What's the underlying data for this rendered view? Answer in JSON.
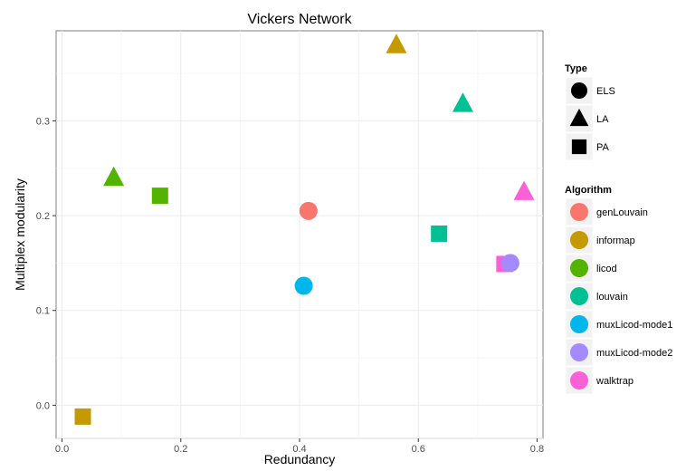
{
  "chart_data": {
    "type": "scatter",
    "title": "Vickers Network",
    "xlabel": "Redundancy",
    "ylabel": "Multiplex modularity",
    "xlim": [
      -0.01,
      0.81
    ],
    "ylim": [
      -0.035,
      0.395
    ],
    "xticks": [
      0.0,
      0.2,
      0.4,
      0.6,
      0.8
    ],
    "xtick_labels": [
      "0.0",
      "0.2",
      "0.4",
      "0.6",
      "0.8"
    ],
    "yticks": [
      0.0,
      0.1,
      0.2,
      0.3
    ],
    "ytick_labels": [
      "0.0",
      "0.1",
      "0.2",
      "0.3"
    ],
    "grid": true,
    "points": [
      {
        "algorithm": "genLouvain",
        "type": "ELS",
        "x": 0.415,
        "y": 0.205
      },
      {
        "algorithm": "informap",
        "type": "LA",
        "x": 0.563,
        "y": 0.38
      },
      {
        "algorithm": "informap",
        "type": "PA",
        "x": 0.035,
        "y": -0.012
      },
      {
        "algorithm": "licod",
        "type": "LA",
        "x": 0.087,
        "y": 0.24
      },
      {
        "algorithm": "licod",
        "type": "PA",
        "x": 0.165,
        "y": 0.221
      },
      {
        "algorithm": "louvain",
        "type": "LA",
        "x": 0.675,
        "y": 0.318
      },
      {
        "algorithm": "louvain",
        "type": "PA",
        "x": 0.635,
        "y": 0.181
      },
      {
        "algorithm": "muxLicod-mode1",
        "type": "ELS",
        "x": 0.407,
        "y": 0.126
      },
      {
        "algorithm": "walktrap",
        "type": "PA",
        "x": 0.745,
        "y": 0.149
      },
      {
        "algorithm": "muxLicod-mode2",
        "type": "ELS",
        "x": 0.755,
        "y": 0.15
      },
      {
        "algorithm": "walktrap",
        "type": "LA",
        "x": 0.778,
        "y": 0.225
      }
    ],
    "legends": {
      "type": {
        "title": "Type",
        "entries": [
          {
            "label": "ELS",
            "shape": "circle"
          },
          {
            "label": "LA",
            "shape": "triangle"
          },
          {
            "label": "PA",
            "shape": "square"
          }
        ]
      },
      "algorithm": {
        "title": "Algorithm",
        "entries": [
          {
            "label": "genLouvain",
            "color": "#F8766D"
          },
          {
            "label": "informap",
            "color": "#C49A00"
          },
          {
            "label": "licod",
            "color": "#53B400"
          },
          {
            "label": "louvain",
            "color": "#00C094"
          },
          {
            "label": "muxLicod-mode1",
            "color": "#00B6EB"
          },
          {
            "label": "muxLicod-mode2",
            "color": "#A58AFF"
          },
          {
            "label": "walktrap",
            "color": "#FB61D7"
          }
        ]
      }
    },
    "legend_position": "right"
  }
}
